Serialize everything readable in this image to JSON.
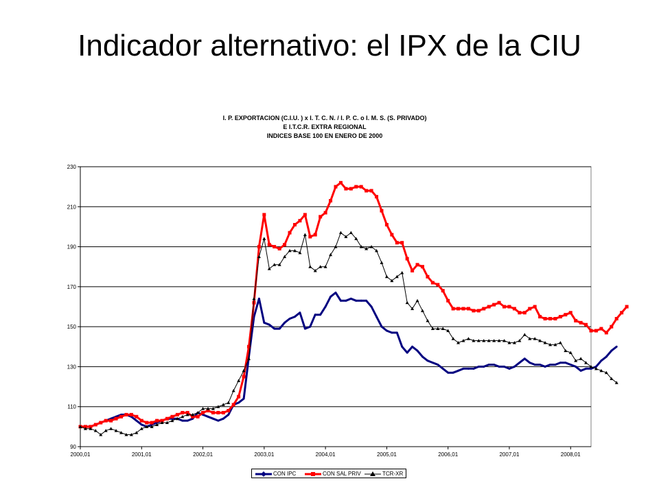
{
  "slide": {
    "title": "Indicador alternativo: el IPX de la CIU"
  },
  "chart_data": {
    "type": "line",
    "title_lines": [
      "I. P. EXPORTACION (C.I.U. )  x  I. T. C. N.   /  I. P. C.  o  I. M. S. (S. PRIVADO)",
      "E I.T.C.R. EXTRA REGIONAL",
      "INDICES BASE 100 EN ENERO DE 2000"
    ],
    "xlabel": "",
    "ylabel": "",
    "ylim": [
      90,
      230
    ],
    "yticks": [
      "90",
      "110",
      "130",
      "150",
      "170",
      "190",
      "210",
      "230"
    ],
    "xticks": [
      "2000,01",
      "2001,01",
      "2002,01",
      "2003,01",
      "2004,01",
      "2005,01",
      "2006,01",
      "2007,01",
      "2008,01"
    ],
    "x_start": "2000,01",
    "x_end": "2008,05",
    "grid": true,
    "legend_position": "bottom",
    "series": [
      {
        "name": "CON IPC",
        "color": "#000080",
        "marker": "none",
        "values": [
          100,
          100,
          100,
          101,
          102,
          103,
          104,
          105,
          106,
          106,
          105,
          103,
          101,
          100,
          101,
          102,
          103,
          104,
          104,
          104,
          103,
          103,
          104,
          107,
          106,
          105,
          104,
          103,
          104,
          106,
          111,
          112,
          114,
          135,
          155,
          164,
          152,
          151,
          149,
          149,
          152,
          154,
          155,
          157,
          149,
          150,
          156,
          156,
          160,
          165,
          167,
          163,
          163,
          164,
          163,
          163,
          163,
          160,
          155,
          150,
          148,
          147,
          147,
          140,
          137,
          140,
          138,
          135,
          133,
          132,
          131,
          129,
          127,
          127,
          128,
          129,
          129,
          129,
          130,
          130,
          131,
          131,
          130,
          130,
          129,
          130,
          132,
          134,
          132,
          131,
          131,
          130,
          131,
          131,
          132,
          132,
          131,
          130,
          128,
          129,
          129,
          130,
          133,
          135,
          138,
          140
        ]
      },
      {
        "name": "CON SAL PRIV",
        "color": "#ff0000",
        "marker": "square",
        "values": [
          100,
          100,
          100,
          101,
          102,
          103,
          103,
          104,
          105,
          106,
          106,
          105,
          103,
          102,
          102,
          103,
          103,
          104,
          105,
          106,
          107,
          107,
          105,
          105,
          107,
          108,
          107,
          107,
          107,
          108,
          111,
          115,
          125,
          140,
          162,
          190,
          206,
          191,
          190,
          189,
          191,
          197,
          201,
          203,
          206,
          195,
          196,
          205,
          207,
          213,
          220,
          222,
          219,
          219,
          220,
          220,
          218,
          218,
          215,
          208,
          201,
          196,
          192,
          192,
          184,
          178,
          181,
          180,
          175,
          172,
          171,
          168,
          163,
          159,
          159,
          159,
          159,
          158,
          158,
          159,
          160,
          161,
          162,
          160,
          160,
          159,
          157,
          157,
          159,
          160,
          155,
          154,
          154,
          154,
          155,
          156,
          157,
          153,
          152,
          151,
          148,
          148,
          149,
          147,
          150,
          154,
          157,
          160
        ]
      },
      {
        "name": "TCR-XR",
        "color": "#000000",
        "marker": "triangle",
        "values": [
          100,
          99,
          99,
          98,
          96,
          98,
          99,
          98,
          97,
          96,
          96,
          97,
          99,
          100,
          100,
          101,
          102,
          102,
          103,
          104,
          105,
          106,
          106,
          107,
          109,
          109,
          109,
          110,
          111,
          112,
          118,
          123,
          128,
          134,
          164,
          185,
          194,
          179,
          181,
          181,
          185,
          188,
          188,
          187,
          196,
          180,
          178,
          180,
          180,
          186,
          190,
          197,
          195,
          197,
          194,
          190,
          189,
          190,
          188,
          182,
          175,
          173,
          175,
          177,
          162,
          159,
          163,
          158,
          153,
          149,
          149,
          149,
          148,
          144,
          142,
          143,
          144,
          143,
          143,
          143,
          143,
          143,
          143,
          143,
          142,
          142,
          143,
          146,
          144,
          144,
          143,
          142,
          141,
          141,
          142,
          138,
          137,
          133,
          134,
          132,
          130,
          129,
          128,
          127,
          124,
          122
        ]
      }
    ]
  }
}
